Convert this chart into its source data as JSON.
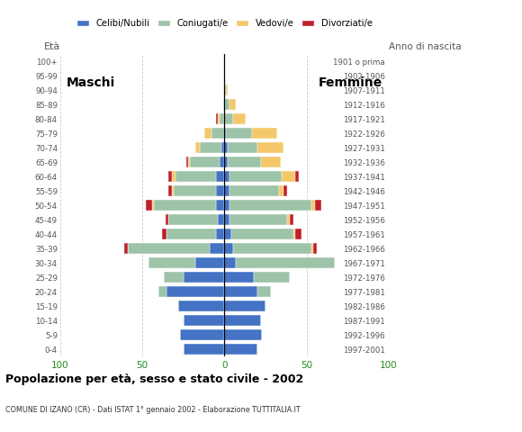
{
  "age_groups": [
    "100+",
    "95-99",
    "90-94",
    "85-89",
    "80-84",
    "75-79",
    "70-74",
    "65-69",
    "60-64",
    "55-59",
    "50-54",
    "45-49",
    "40-44",
    "35-39",
    "30-34",
    "25-29",
    "20-24",
    "15-19",
    "10-14",
    "5-9",
    "0-4"
  ],
  "birth_years": [
    "1901 o prima",
    "1902-1906",
    "1907-1911",
    "1912-1916",
    "1917-1921",
    "1922-1926",
    "1927-1931",
    "1932-1936",
    "1937-1941",
    "1942-1946",
    "1947-1951",
    "1952-1956",
    "1957-1961",
    "1962-1966",
    "1967-1971",
    "1972-1976",
    "1977-1981",
    "1982-1986",
    "1987-1991",
    "1992-1996",
    "1997-2001"
  ],
  "males": {
    "celibe": [
      0,
      0,
      0,
      0,
      0,
      0,
      2,
      3,
      5,
      5,
      5,
      4,
      5,
      9,
      18,
      25,
      35,
      28,
      25,
      27,
      25
    ],
    "coniugato": [
      0,
      0,
      0,
      1,
      3,
      8,
      13,
      18,
      25,
      26,
      38,
      30,
      30,
      50,
      28,
      12,
      5,
      0,
      0,
      0,
      0
    ],
    "vedovo": [
      0,
      0,
      0,
      0,
      1,
      4,
      3,
      1,
      2,
      1,
      1,
      0,
      0,
      0,
      0,
      0,
      0,
      0,
      0,
      0,
      0
    ],
    "divorziato": [
      0,
      0,
      0,
      0,
      1,
      0,
      0,
      1,
      2,
      2,
      4,
      2,
      3,
      2,
      0,
      0,
      0,
      0,
      0,
      0,
      0
    ]
  },
  "females": {
    "nubile": [
      0,
      0,
      0,
      0,
      0,
      1,
      2,
      2,
      3,
      3,
      3,
      3,
      4,
      5,
      7,
      18,
      20,
      25,
      22,
      23,
      20
    ],
    "coniugata": [
      0,
      0,
      1,
      3,
      5,
      16,
      18,
      20,
      32,
      30,
      50,
      35,
      38,
      48,
      60,
      22,
      8,
      0,
      0,
      0,
      0
    ],
    "vedova": [
      0,
      0,
      1,
      4,
      8,
      15,
      16,
      12,
      8,
      3,
      2,
      2,
      1,
      1,
      0,
      0,
      0,
      0,
      0,
      0,
      0
    ],
    "divorziata": [
      0,
      0,
      0,
      0,
      0,
      0,
      0,
      0,
      2,
      2,
      4,
      2,
      4,
      2,
      0,
      0,
      0,
      0,
      0,
      0,
      0
    ]
  },
  "colors": {
    "celibe": "#4472C4",
    "coniugato": "#9DC3A8",
    "vedovo": "#F4C86A",
    "divorziato": "#C0202A"
  },
  "title": "Popolazione per età, sesso e stato civile - 2002",
  "subtitle": "COMUNE DI IZANO (CR) - Dati ISTAT 1° gennaio 2002 - Elaborazione TUTTITALIA.IT",
  "label_maschi": "Maschi",
  "label_femmine": "Femmine",
  "label_eta": "Età",
  "label_anno": "Anno di nascita",
  "xlim": 100,
  "legend_labels": [
    "Celibi/Nubili",
    "Coniugati/e",
    "Vedovi/e",
    "Divorziati/e"
  ],
  "legend_colors": [
    "#4472C4",
    "#9DC3A8",
    "#F4C86A",
    "#C0202A"
  ],
  "grid_color": "#cccccc"
}
